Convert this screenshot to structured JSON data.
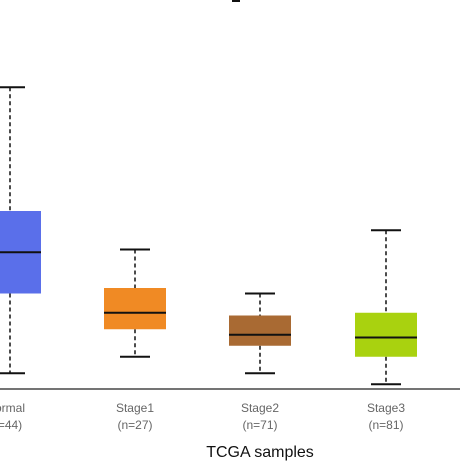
{
  "chart_data": {
    "type": "box",
    "title": "",
    "xlabel": "TCGA samples",
    "ylabel": "",
    "ylim": [
      0,
      110
    ],
    "grid": false,
    "legend": "none",
    "categories": [
      {
        "label": "ormal",
        "n_label": "=44)",
        "color": "#5a6fea",
        "min": 5,
        "q1": 34,
        "median": 49,
        "q3": 64,
        "max": 109
      },
      {
        "label": "Stage1",
        "n_label": "(n=27)",
        "color": "#f08a24",
        "min": 11,
        "q1": 21,
        "median": 27,
        "q3": 36,
        "max": 50
      },
      {
        "label": "Stage2",
        "n_label": "(n=71)",
        "color": "#a96a33",
        "min": 5,
        "q1": 15,
        "median": 19,
        "q3": 26,
        "max": 34
      },
      {
        "label": "Stage3",
        "n_label": "(n=81)",
        "color": "#a9d20f",
        "min": 1,
        "q1": 11,
        "median": 18,
        "q3": 27,
        "max": 57
      }
    ]
  }
}
